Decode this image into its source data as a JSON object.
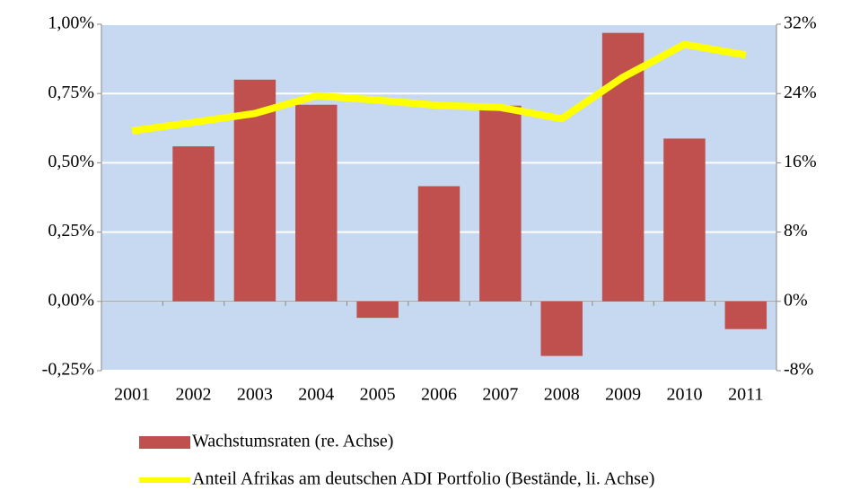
{
  "chart_data": {
    "type": "bar-line",
    "categories": [
      "2001",
      "2002",
      "2003",
      "2004",
      "2005",
      "2006",
      "2007",
      "2008",
      "2009",
      "2010",
      "2011"
    ],
    "series": [
      {
        "name": "Wachstumsraten (re. Achse)",
        "type": "bar",
        "axis": "y2",
        "color": "#c0504d",
        "values": [
          0,
          17.9,
          25.6,
          22.7,
          -1.9,
          13.3,
          22.6,
          -6.3,
          31.0,
          18.8,
          -3.2
        ]
      },
      {
        "name": "Anteil Afrikas am deutschen ADI Portfolio (Bestände, li. Achse)",
        "type": "line",
        "axis": "y",
        "color": "#ffff00",
        "values": [
          0.615,
          0.646,
          0.678,
          0.742,
          0.726,
          0.707,
          0.7,
          0.659,
          0.809,
          0.927,
          0.889
        ]
      }
    ],
    "ylim": [
      -0.25,
      1.0
    ],
    "yticks": [
      {
        "value": -0.25,
        "label": "-0,25%"
      },
      {
        "value": 0,
        "label": "0,00%"
      },
      {
        "value": 0.25,
        "label": "0,25%"
      },
      {
        "value": 0.5,
        "label": "0,50%"
      },
      {
        "value": 0.75,
        "label": "0,75%"
      },
      {
        "value": 1.0,
        "label": "1,00%"
      }
    ],
    "y2lim": [
      -8,
      32
    ],
    "y2ticks": [
      {
        "value": -8,
        "label": "-8%"
      },
      {
        "value": 0,
        "label": "0%"
      },
      {
        "value": 8,
        "label": "8%"
      },
      {
        "value": 16,
        "label": "16%"
      },
      {
        "value": 24,
        "label": "24%"
      },
      {
        "value": 32,
        "label": "32%"
      }
    ],
    "grid": true,
    "background": "#c6d9f0",
    "legend": "bottom"
  }
}
